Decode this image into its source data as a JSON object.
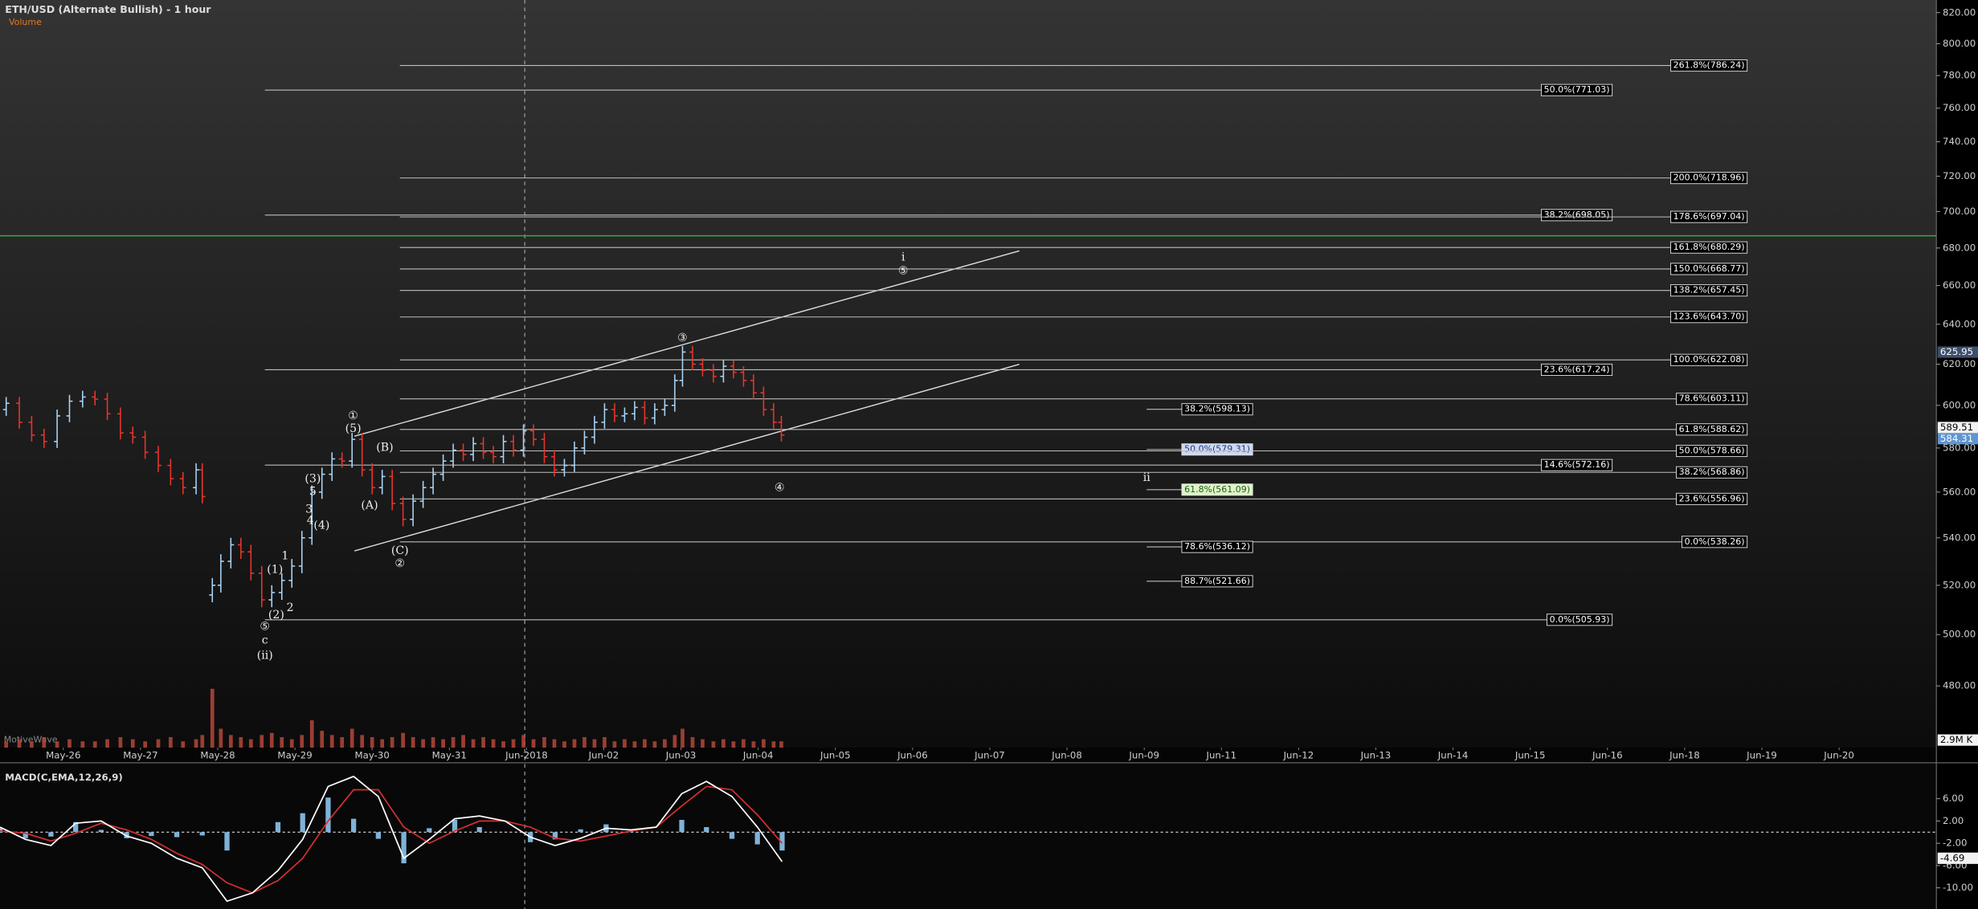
{
  "chart_data": [
    {
      "type": "ohlc",
      "title": "ETH/USD (Alternate Bullish) - 1 hour",
      "volume_label": "Volume",
      "watermark": "MotiveWave",
      "log_scale": true,
      "up_color": "#a9d4f5",
      "down_color": "#e8352b",
      "volume_color": "#b5483a",
      "xlim": [
        -0.82,
        24.26
      ],
      "xticks": [
        {
          "value": 0,
          "label": "May-26"
        },
        {
          "value": 1,
          "label": "May-27"
        },
        {
          "value": 2,
          "label": "May-28"
        },
        {
          "value": 3,
          "label": "May-29"
        },
        {
          "value": 4,
          "label": "May-30"
        },
        {
          "value": 5,
          "label": "May-31"
        },
        {
          "value": 6,
          "label": "Jun-2018"
        },
        {
          "value": 7,
          "label": "Jun-02"
        },
        {
          "value": 8,
          "label": "Jun-03"
        },
        {
          "value": 9,
          "label": "Jun-04"
        },
        {
          "value": 10,
          "label": "Jun-05"
        },
        {
          "value": 11,
          "label": "Jun-06"
        },
        {
          "value": 12,
          "label": "Jun-07"
        },
        {
          "value": 13,
          "label": "Jun-08"
        },
        {
          "value": 14,
          "label": "Jun-09"
        },
        {
          "value": 15,
          "label": "Jun-11"
        },
        {
          "value": 16,
          "label": "Jun-12"
        },
        {
          "value": 17,
          "label": "Jun-13"
        },
        {
          "value": 18,
          "label": "Jun-14"
        },
        {
          "value": 19,
          "label": "Jun-15"
        },
        {
          "value": 20,
          "label": "Jun-16"
        },
        {
          "value": 21,
          "label": "Jun-18"
        },
        {
          "value": 22,
          "label": "Jun-19"
        },
        {
          "value": 23,
          "label": "Jun-20"
        }
      ],
      "ylim": [
        457,
        828.3
      ],
      "yticks": [
        {
          "value": 480,
          "label": "480.00"
        },
        {
          "value": 500,
          "label": "500.00"
        },
        {
          "value": 520,
          "label": "520.00"
        },
        {
          "value": 540,
          "label": "540.00"
        },
        {
          "value": 560,
          "label": "560.00"
        },
        {
          "value": 580,
          "label": "580.00"
        },
        {
          "value": 600,
          "label": "600.00"
        },
        {
          "value": 620,
          "label": "620.00"
        },
        {
          "value": 640,
          "label": "640.00"
        },
        {
          "value": 660,
          "label": "660.00"
        },
        {
          "value": 680,
          "label": "680.00"
        },
        {
          "value": 700,
          "label": "700.00"
        },
        {
          "value": 720,
          "label": "720.00"
        },
        {
          "value": 740,
          "label": "740.00"
        },
        {
          "value": 760,
          "label": "760.00"
        },
        {
          "value": 780,
          "label": "780.00"
        },
        {
          "value": 800,
          "label": "800.00"
        },
        {
          "value": 820,
          "label": "820.00"
        }
      ],
      "x": [
        -0.74,
        -0.57,
        -0.41,
        -0.25,
        -0.08,
        0.08,
        0.25,
        0.41,
        0.57,
        0.74,
        0.9,
        1.06,
        1.23,
        1.39,
        1.55,
        1.72,
        1.8,
        1.93,
        2.04,
        2.17,
        2.3,
        2.43,
        2.57,
        2.7,
        2.83,
        2.96,
        3.09,
        3.22,
        3.35,
        3.48,
        3.61,
        3.74,
        3.87,
        4.0,
        4.13,
        4.26,
        4.4,
        4.53,
        4.66,
        4.79,
        4.92,
        5.05,
        5.18,
        5.31,
        5.44,
        5.57,
        5.7,
        5.83,
        5.96,
        6.09,
        6.23,
        6.36,
        6.49,
        6.62,
        6.75,
        6.88,
        7.01,
        7.14,
        7.27,
        7.4,
        7.53,
        7.66,
        7.79,
        7.92,
        8.02,
        8.15,
        8.28,
        8.42,
        8.55,
        8.68,
        8.81,
        8.94,
        9.07,
        9.2,
        9.3
      ],
      "open": [
        598,
        601,
        592,
        586,
        583,
        595,
        602,
        604,
        603,
        596,
        587,
        585,
        578,
        572,
        566,
        562,
        570,
        516,
        520,
        530,
        537,
        534,
        525,
        514,
        517,
        522,
        528,
        540,
        560,
        568,
        575,
        574,
        584,
        570,
        562,
        567,
        555,
        548,
        556,
        562,
        568,
        574,
        579,
        577,
        582,
        578,
        576,
        583,
        579,
        588,
        584,
        576,
        570,
        572,
        580,
        585,
        592,
        598,
        595,
        596,
        599,
        594,
        598,
        600,
        612,
        626,
        620,
        617,
        614,
        619,
        616,
        612,
        606,
        598,
        592
      ],
      "high": [
        604,
        604,
        595,
        589,
        598,
        605,
        607,
        607,
        606,
        599,
        590,
        588,
        581,
        575,
        569,
        573,
        573,
        523,
        533,
        540,
        540,
        537,
        528,
        520,
        525,
        531,
        543,
        563,
        571,
        578,
        578,
        587,
        587,
        573,
        570,
        570,
        558,
        559,
        565,
        571,
        577,
        582,
        582,
        585,
        585,
        581,
        586,
        586,
        591,
        591,
        587,
        579,
        575,
        583,
        588,
        595,
        601,
        601,
        599,
        602,
        602,
        601,
        603,
        615,
        629,
        629,
        623,
        620,
        622,
        622,
        619,
        615,
        609,
        601,
        595
      ],
      "low": [
        595,
        589,
        583,
        580,
        580,
        592,
        599,
        600,
        593,
        584,
        582,
        575,
        569,
        563,
        559,
        559,
        555,
        513,
        517,
        527,
        531,
        522,
        511,
        511,
        514,
        519,
        525,
        537,
        557,
        565,
        571,
        571,
        567,
        559,
        559,
        552,
        545,
        545,
        553,
        559,
        565,
        571,
        574,
        574,
        575,
        573,
        573,
        576,
        576,
        581,
        573,
        567,
        567,
        569,
        577,
        582,
        589,
        592,
        592,
        593,
        591,
        591,
        595,
        597,
        609,
        617,
        614,
        611,
        611,
        613,
        609,
        603,
        595,
        589,
        583
      ],
      "close": [
        601,
        592,
        586,
        583,
        595,
        602,
        604,
        603,
        596,
        587,
        585,
        578,
        572,
        566,
        562,
        570,
        558,
        520,
        530,
        537,
        534,
        525,
        514,
        517,
        522,
        528,
        540,
        560,
        568,
        575,
        574,
        584,
        570,
        562,
        567,
        555,
        548,
        556,
        562,
        568,
        574,
        579,
        577,
        582,
        578,
        576,
        583,
        579,
        588,
        584,
        576,
        570,
        572,
        580,
        585,
        592,
        598,
        595,
        596,
        599,
        594,
        598,
        600,
        612,
        626,
        620,
        617,
        614,
        619,
        616,
        612,
        606,
        598,
        592,
        586
      ],
      "volume_ylim": [
        0,
        3
      ],
      "volume": [
        0.3,
        0.4,
        0.3,
        0.5,
        0.3,
        0.4,
        0.3,
        0.3,
        0.4,
        0.5,
        0.4,
        0.3,
        0.4,
        0.5,
        0.3,
        0.4,
        0.6,
        2.8,
        0.9,
        0.6,
        0.5,
        0.4,
        0.6,
        0.7,
        0.5,
        0.4,
        0.6,
        1.3,
        0.8,
        0.6,
        0.5,
        0.9,
        0.6,
        0.5,
        0.4,
        0.5,
        0.7,
        0.5,
        0.4,
        0.5,
        0.4,
        0.5,
        0.6,
        0.4,
        0.5,
        0.4,
        0.3,
        0.4,
        0.6,
        0.4,
        0.5,
        0.4,
        0.3,
        0.4,
        0.5,
        0.4,
        0.5,
        0.3,
        0.4,
        0.3,
        0.4,
        0.3,
        0.4,
        0.6,
        0.9,
        0.5,
        0.4,
        0.3,
        0.4,
        0.3,
        0.4,
        0.3,
        0.4,
        0.3,
        0.3
      ],
      "volume_tag": "2.9M K",
      "price_tags": [
        {
          "value": 625.95,
          "label": "625.95"
        },
        {
          "value": 589.51,
          "label": "589.51"
        },
        {
          "value": 584.31,
          "label": "584.31"
        }
      ],
      "fib_levels": [
        {
          "label": "261.8%(786.24)",
          "value": 786.24
        },
        {
          "label": "50.0%(771.03)",
          "value": 771.03
        },
        {
          "label": "200.0%(718.96)",
          "value": 718.96
        },
        {
          "label": "38.2%(698.05)",
          "value": 698.05
        },
        {
          "label": "178.6%(697.04)",
          "value": 697.04
        },
        {
          "label": "161.8%(680.29)",
          "value": 680.29
        },
        {
          "label": "150.0%(668.77)",
          "value": 668.77
        },
        {
          "label": "138.2%(657.45)",
          "value": 657.45
        },
        {
          "label": "123.6%(643.70)",
          "value": 643.7
        },
        {
          "label": "100.0%(622.08)",
          "value": 622.08
        },
        {
          "label": "23.6%(617.24)",
          "value": 617.24
        },
        {
          "label": "78.6%(603.11)",
          "value": 603.11
        },
        {
          "label": "38.2%(598.13)",
          "value": 598.13
        },
        {
          "label": "61.8%(588.62)",
          "value": 588.62
        },
        {
          "label": "50.0%(579.31)",
          "value": 579.31
        },
        {
          "label": "50.0%(578.66)",
          "value": 578.66
        },
        {
          "label": "14.6%(572.16)",
          "value": 572.16
        },
        {
          "label": "38.2%(568.86)",
          "value": 568.86
        },
        {
          "label": "61.8%(561.09)",
          "value": 561.09
        },
        {
          "label": "23.6%(556.96)",
          "value": 556.96
        },
        {
          "label": "0.0%(538.26)",
          "value": 538.26
        },
        {
          "label": "78.6%(536.12)",
          "value": 536.12
        },
        {
          "label": "88.7%(521.66)",
          "value": 521.66
        },
        {
          "label": "0.0%(505.93)",
          "value": 505.93
        }
      ],
      "wave_labels": [
        "(ii)",
        "c",
        "⑤",
        "(2)",
        "2",
        "(1)",
        "1",
        "4",
        "(4)",
        "3",
        "5",
        "(3)",
        "①",
        "(5)",
        "(B)",
        "(A)",
        "(C)",
        "②",
        "③",
        "④",
        "i",
        "⑤",
        "ii"
      ]
    },
    {
      "type": "macd",
      "title": "MACD(C,EMA,12,26,9)",
      "macd_color": "#ffffff",
      "signal_color": "#d32f2f",
      "histogram_color": "#7fb2d9",
      "ylim": [
        -13.8,
        12
      ],
      "yticks": [
        {
          "value": 6,
          "label": "6.00"
        },
        {
          "value": 2,
          "label": "2.00"
        },
        {
          "value": -2,
          "label": "-2.00"
        },
        {
          "value": -6,
          "label": "-6.00"
        },
        {
          "value": -10,
          "label": "-10.00"
        }
      ],
      "last_tag": {
        "value": -4.69,
        "label": "-4.69"
      },
      "x": [
        -0.82,
        -0.49,
        -0.16,
        0.16,
        0.49,
        0.82,
        1.14,
        1.47,
        1.8,
        2.12,
        2.45,
        2.78,
        3.1,
        3.43,
        3.76,
        4.08,
        4.41,
        4.74,
        5.07,
        5.39,
        5.72,
        6.05,
        6.37,
        6.7,
        7.03,
        7.35,
        7.68,
        8.01,
        8.33,
        8.66,
        8.99,
        9.31
      ],
      "macd": [
        0.9,
        -1.3,
        -2.4,
        1.6,
        2.0,
        -0.7,
        -2.0,
        -4.7,
        -6.4,
        -12.4,
        -10.9,
        -6.9,
        -1.3,
        8.2,
        10.0,
        6.4,
        -4.7,
        -1.3,
        2.4,
        2.9,
        2.0,
        -0.9,
        -2.4,
        -1.1,
        0.7,
        0.4,
        0.9,
        6.9,
        9.1,
        6.4,
        0.9,
        -5.3
      ],
      "signal": [
        0.2,
        -0.2,
        -1.6,
        -0.2,
        1.6,
        0.4,
        -1.3,
        -3.8,
        -5.8,
        -9.1,
        -10.9,
        -8.7,
        -4.7,
        2.0,
        7.6,
        7.6,
        0.9,
        -2.0,
        0.2,
        2.0,
        2.0,
        0.9,
        -1.1,
        -1.6,
        -0.7,
        0.2,
        0.9,
        4.7,
        8.2,
        7.6,
        3.1,
        -2.0
      ],
      "histogram": [
        0.7,
        -1.1,
        -0.8,
        1.8,
        0.4,
        -1.1,
        -0.7,
        -0.9,
        -0.6,
        -3.3,
        0.0,
        1.8,
        3.4,
        6.2,
        2.4,
        -1.2,
        -5.6,
        0.7,
        2.2,
        0.9,
        0.0,
        -1.8,
        -1.3,
        0.5,
        1.4,
        0.2,
        0.0,
        2.2,
        0.9,
        -1.2,
        -2.2,
        -3.3
      ]
    }
  ]
}
